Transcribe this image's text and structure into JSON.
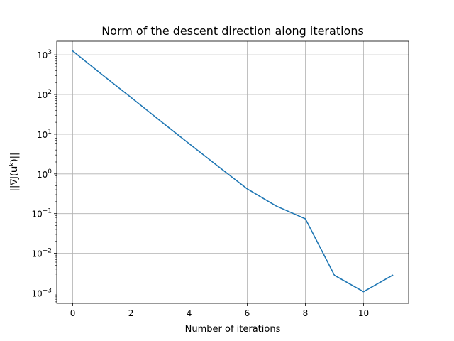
{
  "chart_data": {
    "type": "line",
    "title": "Norm of the descent direction along iterations",
    "xlabel": "Number of iterations",
    "ylabel": "||∇J(u^k)||",
    "ylabel_parts": {
      "open": "||∇J(",
      "bold": "u",
      "sup": "k",
      "close": ")||"
    },
    "yscale": "log",
    "grid": true,
    "xlim": [
      -0.55,
      11.55
    ],
    "ylim": [
      0.00055,
      2200
    ],
    "x_ticks": [
      {
        "value": 0,
        "label": "0"
      },
      {
        "value": 2,
        "label": "2"
      },
      {
        "value": 4,
        "label": "4"
      },
      {
        "value": 6,
        "label": "6"
      },
      {
        "value": 8,
        "label": "8"
      },
      {
        "value": 10,
        "label": "10"
      }
    ],
    "y_ticks": [
      {
        "value": 0.001,
        "base": "10",
        "exp": "−3"
      },
      {
        "value": 0.01,
        "base": "10",
        "exp": "−2"
      },
      {
        "value": 0.1,
        "base": "10",
        "exp": "−1"
      },
      {
        "value": 1,
        "base": "10",
        "exp": "0"
      },
      {
        "value": 10,
        "base": "10",
        "exp": "1"
      },
      {
        "value": 100,
        "base": "10",
        "exp": "2"
      },
      {
        "value": 1000,
        "base": "10",
        "exp": "3"
      }
    ],
    "series": [
      {
        "color": "#1f77b4",
        "x": [
          0,
          1,
          2,
          3,
          4,
          5,
          6,
          7,
          8,
          9,
          10,
          11
        ],
        "y": [
          1250,
          320,
          85,
          22,
          5.8,
          1.55,
          0.42,
          0.155,
          0.074,
          0.0028,
          0.00108,
          0.0028
        ]
      }
    ]
  }
}
